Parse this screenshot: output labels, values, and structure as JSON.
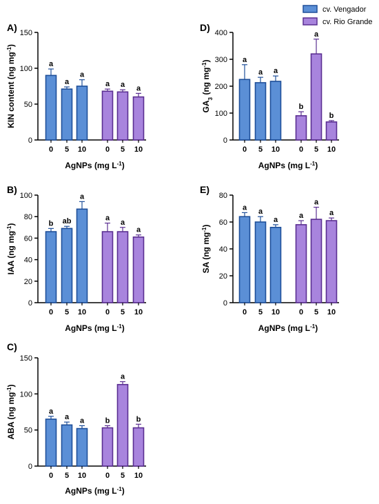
{
  "legend": {
    "items": [
      {
        "label": "cv. Vengador",
        "fill": "#5b8fd6",
        "stroke": "#1f4f99"
      },
      {
        "label": "cv. Rio Grande",
        "fill": "#a884dd",
        "stroke": "#5a2e91"
      }
    ]
  },
  "chart_data": [
    {
      "panel": "A)",
      "type": "bar",
      "ylabel": "KIN content (ng mg-1)",
      "ylabel_main": "KIN content (ng mg",
      "ylabel_sup": "-1",
      "ylabel_end": ")",
      "xlabel_main": "AgNPs  (mg L",
      "xlabel_sup": "-1",
      "xlabel_end": ")",
      "ylim": [
        0,
        150
      ],
      "yticks": [
        0,
        50,
        100,
        150
      ],
      "categories": [
        "0",
        "5",
        "10"
      ],
      "series": [
        {
          "name": "cv. Vengador",
          "values": [
            90,
            71,
            75
          ],
          "errors": [
            9,
            3,
            9
          ],
          "letters": [
            "a",
            "a",
            "a"
          ]
        },
        {
          "name": "cv. Rio Grande",
          "values": [
            68,
            67,
            60
          ],
          "errors": [
            3,
            3,
            5
          ],
          "letters": [
            "a",
            "a",
            "a"
          ]
        }
      ]
    },
    {
      "panel": "B)",
      "type": "bar",
      "ylabel": "IAA (ng mg-1)",
      "ylabel_main": "IAA (ng mg",
      "ylabel_sup": "-1",
      "ylabel_end": ")",
      "xlabel_main": "AgNPs  (mg L",
      "xlabel_sup": "-1",
      "xlabel_end": ")",
      "ylim": [
        0,
        100
      ],
      "yticks": [
        0,
        20,
        40,
        60,
        80,
        100
      ],
      "categories": [
        "0",
        "5",
        "10"
      ],
      "series": [
        {
          "name": "cv. Vengador",
          "values": [
            66,
            69,
            87
          ],
          "errors": [
            3,
            2,
            7
          ],
          "letters": [
            "b",
            "ab",
            "a"
          ]
        },
        {
          "name": "cv. Rio Grande",
          "values": [
            66,
            66,
            61
          ],
          "errors": [
            8,
            4,
            2
          ],
          "letters": [
            "a",
            "a",
            "a"
          ]
        }
      ]
    },
    {
      "panel": "C)",
      "type": "bar",
      "ylabel": "ABA (ng mg-1)",
      "ylabel_main": "ABA (ng mg",
      "ylabel_sup": "-1",
      "ylabel_end": ")",
      "xlabel_main": "AgNPs  (mg L",
      "xlabel_sup": "-1",
      "xlabel_end": ")",
      "ylim": [
        0,
        150
      ],
      "yticks": [
        0,
        50,
        100,
        150
      ],
      "categories": [
        "0",
        "5",
        "10"
      ],
      "series": [
        {
          "name": "cv. Vengador",
          "values": [
            65,
            57,
            52
          ],
          "errors": [
            4,
            4,
            4
          ],
          "letters": [
            "a",
            "a",
            "a"
          ]
        },
        {
          "name": "cv. Rio Grande",
          "values": [
            53,
            113,
            53
          ],
          "errors": [
            3,
            4,
            5
          ],
          "letters": [
            "b",
            "a",
            "b"
          ]
        }
      ]
    },
    {
      "panel": "D)",
      "type": "bar",
      "ylabel": "GA3 (ng mg-1)",
      "ylabel_main": "GA",
      "ylabel_sub": "3",
      "ylabel_mid": " (ng mg",
      "ylabel_sup": "-1",
      "ylabel_end": ")",
      "xlabel_main": "AgNPs  (mg L",
      "xlabel_sup": "-1",
      "xlabel_end": ")",
      "ylim": [
        0,
        400
      ],
      "yticks": [
        0,
        100,
        200,
        300,
        400
      ],
      "categories": [
        "0",
        "5",
        "10"
      ],
      "series": [
        {
          "name": "cv. Vengador",
          "values": [
            225,
            213,
            218
          ],
          "errors": [
            55,
            20,
            20
          ],
          "letters": [
            "a",
            "a",
            "a"
          ]
        },
        {
          "name": "cv. Rio Grande",
          "values": [
            90,
            320,
            67
          ],
          "errors": [
            15,
            55,
            5
          ],
          "letters": [
            "b",
            "a",
            "b"
          ]
        }
      ]
    },
    {
      "panel": "E)",
      "type": "bar",
      "ylabel": "SA (ng mg-1)",
      "ylabel_main": "SA (ng mg",
      "ylabel_sup": "-1",
      "ylabel_end": ")",
      "xlabel_main": "AgNPs  (mg L",
      "xlabel_sup": "-1",
      "xlabel_end": ")",
      "ylim": [
        0,
        80
      ],
      "yticks": [
        0,
        20,
        40,
        60,
        80
      ],
      "categories": [
        "0",
        "5",
        "10"
      ],
      "series": [
        {
          "name": "cv. Vengador",
          "values": [
            64,
            60,
            56
          ],
          "errors": [
            3,
            4,
            2
          ],
          "letters": [
            "a",
            "a",
            "a"
          ]
        },
        {
          "name": "cv. Rio Grande",
          "values": [
            58,
            62,
            61
          ],
          "errors": [
            3,
            9,
            2
          ],
          "letters": [
            "a",
            "a",
            "a"
          ]
        }
      ]
    }
  ]
}
